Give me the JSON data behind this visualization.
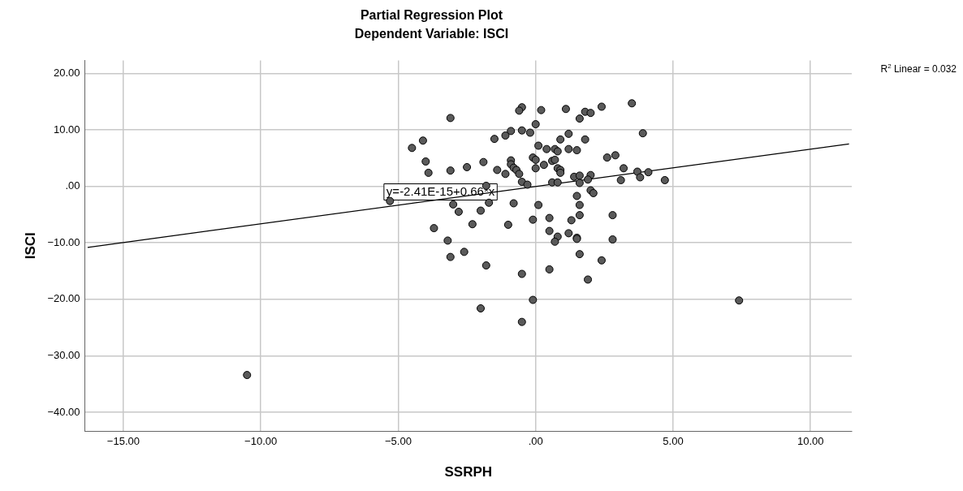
{
  "chart_data": {
    "type": "scatter",
    "title": "Partial Regression Plot",
    "subtitle": "Dependent Variable: ISCI",
    "xlabel": "SSRPH",
    "ylabel": "ISCI",
    "xlim": [
      -16.4,
      11.5
    ],
    "ylim": [
      -43.3,
      22.3
    ],
    "xticks": [
      {
        "value": -15,
        "label": "−15.00"
      },
      {
        "value": -10,
        "label": "−10.00"
      },
      {
        "value": -5,
        "label": "−5.00"
      },
      {
        "value": 0,
        "label": ".00"
      },
      {
        "value": 5,
        "label": "5.00"
      },
      {
        "value": 10,
        "label": "10.00"
      }
    ],
    "yticks": [
      {
        "value": -40,
        "label": "−40.00"
      },
      {
        "value": -30,
        "label": "−30.00"
      },
      {
        "value": -20,
        "label": "−20.00"
      },
      {
        "value": -10,
        "label": "−10.00"
      },
      {
        "value": 0,
        "label": ".00"
      },
      {
        "value": 10,
        "label": "10.00"
      },
      {
        "value": 20,
        "label": "20.00"
      }
    ],
    "grid": true,
    "legend": false,
    "marker": "circle",
    "series": [
      {
        "color": "#5a5a5a",
        "x": [
          -0.5,
          -0.6,
          0.2,
          1.1,
          1.8,
          2.0,
          2.4,
          3.5,
          -3.1,
          1.6,
          0.0,
          3.9,
          -0.5,
          -0.9,
          -0.2,
          1.2,
          -1.1,
          -1.5,
          0.9,
          1.8,
          -4.5,
          -4.1,
          0.1,
          0.4,
          0.7,
          0.8,
          1.2,
          1.5,
          2.9,
          2.6,
          -4.0,
          -2.5,
          -1.9,
          -0.9,
          -0.9,
          -0.1,
          0.0,
          0.6,
          0.7,
          0.3,
          -0.8,
          -0.7,
          -0.6,
          -1.4,
          -1.1,
          0.0,
          0.8,
          0.9,
          0.9,
          -3.9,
          -3.1,
          3.2,
          3.7,
          4.1,
          3.8,
          3.1,
          4.7,
          1.4,
          1.6,
          2.0,
          1.9,
          1.6,
          -0.5,
          -0.3,
          0.6,
          0.8,
          -1.8,
          -5.3,
          1.5,
          2.0,
          2.1,
          1.6,
          1.6,
          2.8,
          0.1,
          -1.7,
          -0.8,
          -3.0,
          -2.8,
          -2.0,
          -0.1,
          0.5,
          1.3,
          -2.3,
          -1.0,
          -3.7,
          0.5,
          0.8,
          1.2,
          0.7,
          1.5,
          1.5,
          2.8,
          -3.2,
          -3.1,
          -2.6,
          -1.8,
          1.6,
          -0.5,
          0.5,
          2.4,
          1.9,
          -0.1,
          -2.0,
          -0.5,
          7.4,
          -10.5
        ],
        "values": [
          14.0,
          13.4,
          13.5,
          13.7,
          13.2,
          13.0,
          14.1,
          14.7,
          12.1,
          12.0,
          11.0,
          9.4,
          9.9,
          9.8,
          9.5,
          9.3,
          9.0,
          8.4,
          8.3,
          8.3,
          6.8,
          8.1,
          7.2,
          6.6,
          6.6,
          6.2,
          6.6,
          6.4,
          5.5,
          5.1,
          4.4,
          3.4,
          4.3,
          4.6,
          3.9,
          5.1,
          4.7,
          4.5,
          4.7,
          3.8,
          3.3,
          2.9,
          2.2,
          2.9,
          2.2,
          3.2,
          3.2,
          2.9,
          2.4,
          2.4,
          2.8,
          3.2,
          2.6,
          2.5,
          1.6,
          1.1,
          1.1,
          1.7,
          1.9,
          2.0,
          1.2,
          0.6,
          0.8,
          0.3,
          0.7,
          0.7,
          0.1,
          -2.6,
          -1.7,
          -0.7,
          -1.2,
          -3.3,
          -5.1,
          -5.1,
          -3.3,
          -2.9,
          -3.0,
          -3.2,
          -4.5,
          -4.3,
          -5.9,
          -5.6,
          -6.0,
          -6.7,
          -6.8,
          -7.4,
          -7.9,
          -8.9,
          -8.3,
          -9.8,
          -9.1,
          -9.3,
          -9.4,
          -9.6,
          -12.5,
          -11.6,
          -14.0,
          -12.0,
          -15.5,
          -14.7,
          -13.1,
          -16.5,
          -20.1,
          -21.6,
          -24.0,
          -20.2,
          -33.4
        ]
      },
      {
        "type": "line",
        "color": "#000000",
        "marker": "none",
        "x": [
          -16.3,
          11.4
        ],
        "values": [
          -10.8,
          7.5
        ]
      }
    ],
    "annotations": [
      "y=-2.41E-15+0.66*x",
      "R$^{2}$ Linear = 0.032"
    ]
  }
}
